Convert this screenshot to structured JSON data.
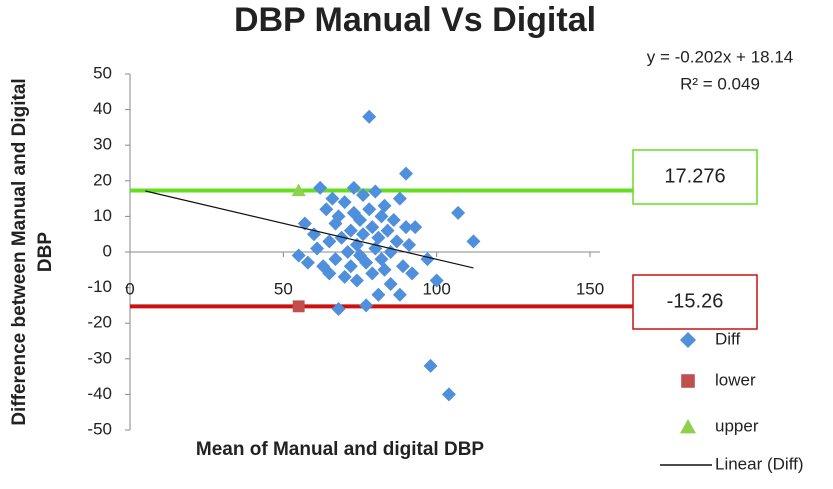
{
  "chart_data": {
    "type": "scatter",
    "title": "DBP Manual Vs Digital",
    "x_label": "Mean of Manual and digital DBP",
    "y_label": [
      "Difference between Manual and Digital",
      "DBP"
    ],
    "xlim": [
      0,
      150
    ],
    "xticks": [
      0,
      50,
      100,
      150
    ],
    "ylim": [
      -50,
      50
    ],
    "yticks": [
      -50,
      -40,
      -30,
      -20,
      -10,
      0,
      10,
      20,
      30,
      40,
      50
    ],
    "series": [
      {
        "name": "Diff",
        "color": "#4f8fdc",
        "marker": "diamond",
        "x": [
          55,
          57,
          58,
          60,
          61,
          62,
          63,
          64,
          65,
          65,
          66,
          67,
          67,
          68,
          68,
          69,
          70,
          70,
          71,
          72,
          72,
          73,
          73,
          74,
          74,
          75,
          75,
          76,
          76,
          77,
          77,
          78,
          78,
          79,
          79,
          80,
          80,
          81,
          81,
          82,
          82,
          83,
          83,
          84,
          85,
          85,
          86,
          87,
          88,
          88,
          89,
          90,
          90,
          91,
          92,
          93,
          97,
          98,
          100,
          104,
          107,
          112
        ],
        "values": [
          -1,
          8,
          -3,
          5,
          1,
          18,
          -4,
          12,
          3,
          -6,
          15,
          8,
          -2,
          -16,
          10,
          4,
          -7,
          14,
          0,
          6,
          -4,
          18,
          11,
          2,
          -8,
          9,
          -1,
          16,
          5,
          -15,
          -3,
          38,
          12,
          7,
          -6,
          1,
          17,
          -12,
          4,
          10,
          -2,
          13,
          -5,
          6,
          0,
          -9,
          9,
          3,
          -12,
          15,
          -4,
          22,
          7,
          2,
          -6,
          7,
          -2,
          -32,
          -8,
          -40,
          11,
          3
        ]
      },
      {
        "name": "lower",
        "color": "#c0504d",
        "marker": "square",
        "x": [
          55
        ],
        "values": [
          -15.26
        ]
      },
      {
        "name": "upper",
        "color": "#8fd14f",
        "marker": "triangle",
        "x": [
          55
        ],
        "values": [
          17.276
        ]
      }
    ],
    "limit_lines": [
      {
        "value": 17.276,
        "label": "17.276",
        "color": "#66dd22"
      },
      {
        "value": -15.26,
        "label": "-15.26",
        "color": "#cc1111"
      }
    ],
    "trendline": {
      "name": "Linear (Diff)",
      "x": [
        5,
        112
      ],
      "values": [
        17.13,
        -4.484
      ],
      "equation": "y = -0.202x + 18.14",
      "r2": "R² = 0.049"
    }
  }
}
